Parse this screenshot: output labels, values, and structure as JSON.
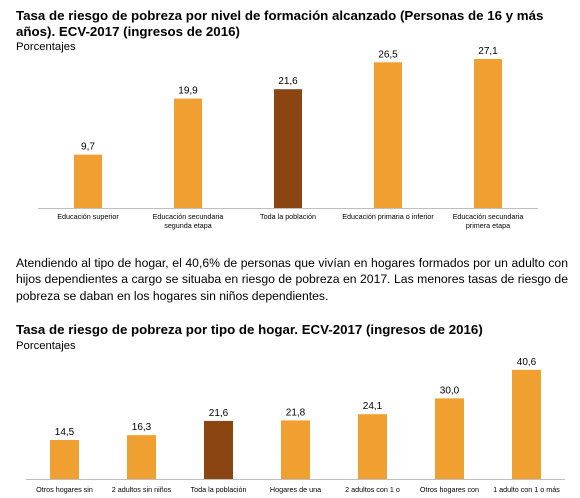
{
  "section1": {
    "title": "Tasa de riesgo de pobreza por nivel de formación alcanzado (Personas de 16 y más años). ECV-2017 (ingresos de 2016)",
    "unit": "Porcentajes"
  },
  "paragraph": "Atendiendo al tipo de hogar, el 40,6% de personas que vivían en hogares formados por un adulto con hijos dependientes a cargo se situaba en riesgo de pobreza en 2017. Las menores tasas de riesgo de pobreza se daban en los hogares sin niños dependientes.",
  "section2": {
    "title": "Tasa de riesgo de pobreza por tipo de hogar. ECV-2017 (ingresos de 2016)",
    "unit": "Porcentajes"
  },
  "colors": {
    "bar": "#F0A030",
    "highlight": "#8B4513",
    "axis": "#BFBFBF"
  },
  "chart_data": [
    {
      "type": "bar",
      "categories": [
        [
          "Educación superior"
        ],
        [
          "Educación secundaria",
          "segunda etapa"
        ],
        [
          "Toda la población"
        ],
        [
          "Educación primaria o inferior"
        ],
        [
          "Educación secundaria",
          "primera etapa"
        ]
      ],
      "values": [
        9.7,
        19.9,
        21.6,
        26.5,
        27.1
      ],
      "value_labels": [
        "9,7",
        "19,9",
        "21,6",
        "26,5",
        "27,1"
      ],
      "highlight_index": 2,
      "ylim": [
        0,
        30
      ]
    },
    {
      "type": "bar",
      "categories": [
        [
          "Otros hogares sin"
        ],
        [
          "2 adultos sin niños"
        ],
        [
          "Toda la población"
        ],
        [
          "Hogares de una"
        ],
        [
          "2 adultos con 1 o"
        ],
        [
          "Otros hogares con"
        ],
        [
          "1 adulto con 1 o más"
        ]
      ],
      "values": [
        14.5,
        16.3,
        21.6,
        21.8,
        24.1,
        30.0,
        40.6
      ],
      "value_labels": [
        "14,5",
        "16,3",
        "21,6",
        "21,8",
        "24,1",
        "30,0",
        "40,6"
      ],
      "highlight_index": 2,
      "ylim": [
        0,
        45
      ]
    }
  ]
}
